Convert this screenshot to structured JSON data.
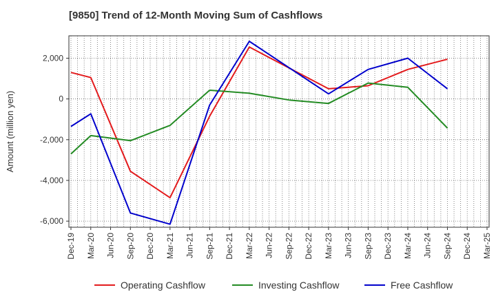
{
  "chart_data": {
    "type": "line",
    "title": "[9850]  Trend of 12-Month Moving Sum of Cashflows",
    "xlabel": "",
    "ylabel": "Amount (million yen)",
    "categories": [
      "Dec-19",
      "Mar-20",
      "Jun-20",
      "Sep-20",
      "Dec-20",
      "Mar-21",
      "Jun-21",
      "Sep-21",
      "Dec-21",
      "Mar-22",
      "Jun-22",
      "Sep-22",
      "Dec-22",
      "Mar-23",
      "Jun-23",
      "Sep-23",
      "Dec-23",
      "Mar-24",
      "Jun-24",
      "Sep-24",
      "Dec-24",
      "Mar-25"
    ],
    "y_ticks": [
      2000,
      0,
      -2000,
      -4000,
      -6000
    ],
    "y_tick_labels": [
      "2,000",
      "0",
      "-2,000",
      "-4,000",
      "-6,000"
    ],
    "ylim": [
      -6300,
      3100
    ],
    "grid": true,
    "legend_position": "bottom",
    "series": [
      {
        "name": "Operating Cashflow",
        "color": "#e31a1c",
        "values": [
          1300,
          1050,
          null,
          -3550,
          null,
          -4850,
          null,
          -850,
          null,
          2550,
          null,
          null,
          null,
          500,
          null,
          650,
          null,
          1450,
          null,
          1950,
          null,
          null
        ]
      },
      {
        "name": "Investing Cashflow",
        "color": "#238b23",
        "values": [
          -2700,
          -1800,
          null,
          -2050,
          null,
          -1300,
          null,
          430,
          null,
          280,
          null,
          -50,
          null,
          -220,
          null,
          780,
          null,
          570,
          null,
          -1430,
          null,
          null
        ]
      },
      {
        "name": "Free Cashflow",
        "color": "#0000cc",
        "values": [
          -1350,
          -730,
          null,
          -5600,
          null,
          -6150,
          null,
          -300,
          null,
          2830,
          null,
          null,
          null,
          250,
          null,
          1450,
          null,
          2000,
          null,
          500,
          null,
          null
        ]
      }
    ]
  }
}
